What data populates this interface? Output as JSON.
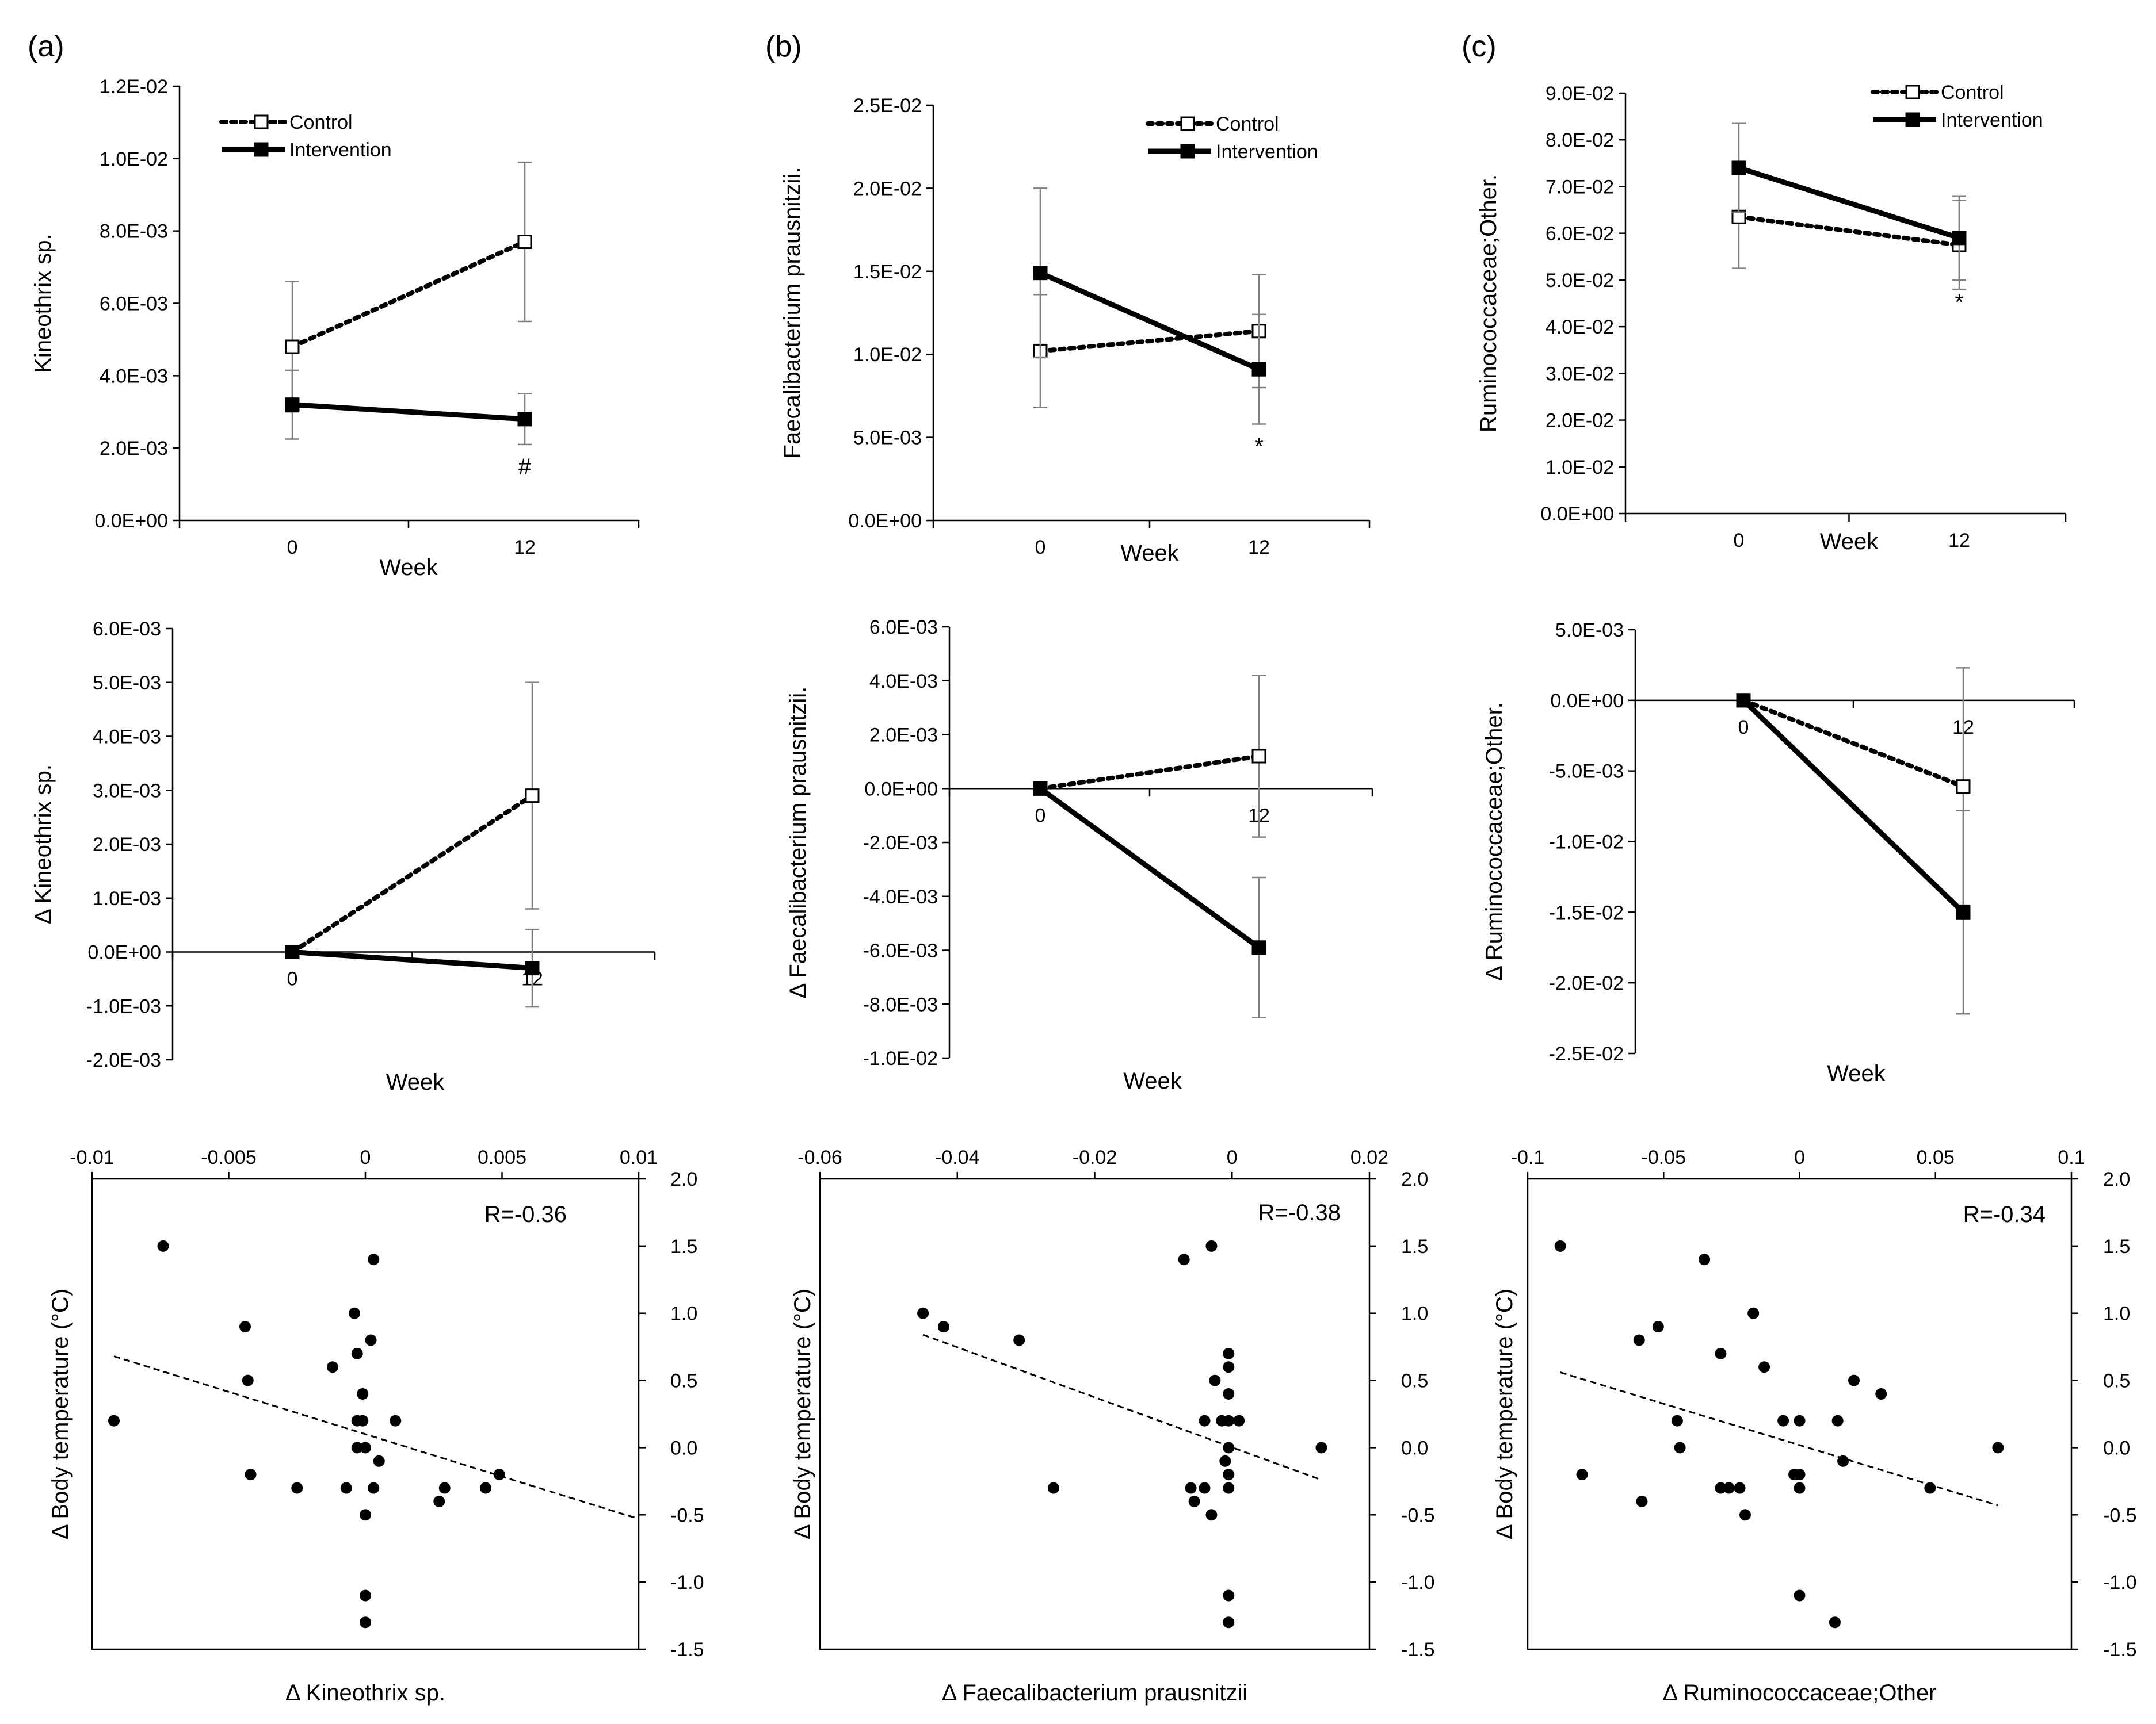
{
  "panel_letters": [
    "(a)",
    "(b)",
    "(c)"
  ],
  "legend": {
    "control": "Control",
    "intervention": "Intervention"
  },
  "colors": {
    "ink": "#000000",
    "background": "#ffffff",
    "errorbar": "#7f7f7f"
  },
  "chart_data": [
    {
      "id": "a-top",
      "type": "line",
      "title": "",
      "xlabel": "Week",
      "ylabel": "Kineothrix sp.",
      "categories": [
        "0",
        "12"
      ],
      "ylim": [
        0,
        0.012
      ],
      "ytick_step": 0.002,
      "ytick_labels": [
        "0.0E+00",
        "2.0E-03",
        "4.0E-03",
        "6.0E-03",
        "8.0E-03",
        "1.0E-02",
        "1.2E-02"
      ],
      "series": [
        {
          "name": "Control",
          "values": [
            0.0048,
            0.0077
          ],
          "err": [
            0.0018,
            0.0022
          ]
        },
        {
          "name": "Intervention",
          "values": [
            0.0032,
            0.0028
          ],
          "err": [
            0.00095,
            0.0007
          ]
        }
      ],
      "annotations": [
        {
          "text": "#",
          "series": 1,
          "point": 1
        }
      ]
    },
    {
      "id": "b-top",
      "type": "line",
      "title": "",
      "xlabel": "Week",
      "ylabel": "Faecalibacterium prausnitzii.",
      "categories": [
        "0",
        "12"
      ],
      "ylim": [
        0,
        0.025
      ],
      "ytick_step": 0.005,
      "ytick_labels": [
        "0.0E+00",
        "5.0E-03",
        "1.0E-02",
        "1.5E-02",
        "2.0E-02",
        "2.5E-02"
      ],
      "series": [
        {
          "name": "Control",
          "values": [
            0.0102,
            0.0114
          ],
          "err": [
            0.0034,
            0.0034
          ]
        },
        {
          "name": "Intervention",
          "values": [
            0.0149,
            0.0091
          ],
          "err": [
            0.0051,
            0.0033
          ]
        }
      ],
      "annotations": [
        {
          "text": "*",
          "series": 1,
          "point": 1
        }
      ]
    },
    {
      "id": "c-top",
      "type": "line",
      "title": "",
      "xlabel": "Week",
      "ylabel": "Ruminococcaceae;Other.",
      "categories": [
        "0",
        "12"
      ],
      "ylim": [
        0,
        0.09
      ],
      "ytick_step": 0.01,
      "ytick_labels": [
        "0.0E+00",
        "1.0E-02",
        "2.0E-02",
        "3.0E-02",
        "4.0E-02",
        "5.0E-02",
        "6.0E-02",
        "7.0E-02",
        "8.0E-02",
        "9.0E-02"
      ],
      "series": [
        {
          "name": "Control",
          "values": [
            0.0635,
            0.0575
          ],
          "err": [
            0.011,
            0.0095
          ]
        },
        {
          "name": "Intervention",
          "values": [
            0.074,
            0.059
          ],
          "err": [
            0.0095,
            0.009
          ]
        }
      ],
      "annotations": [
        {
          "text": "*",
          "series": 1,
          "point": 1
        }
      ]
    },
    {
      "id": "a-mid",
      "type": "line",
      "title": "",
      "xlabel": "Week",
      "ylabel": "Δ Kineothrix sp.",
      "categories": [
        "0",
        "12"
      ],
      "ylim": [
        -0.002,
        0.006
      ],
      "ytick_step": 0.001,
      "ytick_labels": [
        "-2.0E-03",
        "-1.0E-03",
        "0.0E+00",
        "1.0E-03",
        "2.0E-03",
        "3.0E-03",
        "4.0E-03",
        "5.0E-03",
        "6.0E-03"
      ],
      "series": [
        {
          "name": "Control",
          "values": [
            0,
            0.0029
          ],
          "err": [
            0,
            0.0021
          ]
        },
        {
          "name": "Intervention",
          "values": [
            0,
            -0.0003
          ],
          "err": [
            0,
            0.00072
          ]
        }
      ]
    },
    {
      "id": "b-mid",
      "type": "line",
      "title": "",
      "xlabel": "Week",
      "ylabel": "Δ Faecalibacterium prausnitzii.",
      "categories": [
        "0",
        "12"
      ],
      "ylim": [
        -0.01,
        0.006
      ],
      "ytick_step": 0.002,
      "ytick_labels": [
        "-1.0E-02",
        "-8.0E-03",
        "-6.0E-03",
        "-4.0E-03",
        "-2.0E-03",
        "0.0E+00",
        "2.0E-03",
        "4.0E-03",
        "6.0E-03"
      ],
      "series": [
        {
          "name": "Control",
          "values": [
            0,
            0.0012
          ],
          "err": [
            0,
            0.003
          ]
        },
        {
          "name": "Intervention",
          "values": [
            0,
            -0.0059
          ],
          "err": [
            0,
            0.0026
          ]
        }
      ]
    },
    {
      "id": "c-mid",
      "type": "line",
      "title": "",
      "xlabel": "Week",
      "ylabel": "Δ Ruminococcaceae;Other.",
      "categories": [
        "0",
        "12"
      ],
      "ylim": [
        -0.025,
        0.005
      ],
      "ytick_step": 0.005,
      "ytick_labels": [
        "-2.5E-02",
        "-2.0E-02",
        "-1.5E-02",
        "-1.0E-02",
        "-5.0E-03",
        "0.0E+00",
        "5.0E-03"
      ],
      "series": [
        {
          "name": "Control",
          "values": [
            0,
            -0.0061
          ],
          "err": [
            0,
            0.0084
          ]
        },
        {
          "name": "Intervention",
          "values": [
            0,
            -0.015
          ],
          "err": [
            0,
            0.0072
          ]
        }
      ]
    },
    {
      "id": "a-bot",
      "type": "scatter",
      "title": "",
      "xlabel": "Δ Kineothrix sp.",
      "ylabel": "Δ Body temperature (°C)",
      "xlim": [
        -0.01,
        0.01
      ],
      "xtick_step": 0.005,
      "xtick_labels": [
        "-0.01",
        "-0.005",
        "0",
        "0.005",
        "0.01"
      ],
      "ylim": [
        -1.5,
        2.0
      ],
      "ytick_step": 0.5,
      "ytick_labels": [
        "-1.5",
        "-1.0",
        "-0.5",
        "0.0",
        "0.5",
        "1.0",
        "1.5",
        "2.0"
      ],
      "r_label": "R=-0.36",
      "trend": {
        "x": [
          -0.0092,
          0.01
        ],
        "y": [
          0.68,
          -0.53
        ]
      },
      "points": [
        [
          -0.0092,
          0.2
        ],
        [
          -0.0074,
          1.5
        ],
        [
          -0.0044,
          0.9
        ],
        [
          -0.0043,
          0.5
        ],
        [
          -0.0042,
          -0.2
        ],
        [
          -0.0025,
          -0.3
        ],
        [
          -0.0012,
          0.6
        ],
        [
          -0.0007,
          -0.3
        ],
        [
          -0.0004,
          1.0
        ],
        [
          -0.0003,
          0.7
        ],
        [
          -0.0003,
          0.0
        ],
        [
          -0.0003,
          0.2
        ],
        [
          -0.0001,
          0.4
        ],
        [
          -0.0001,
          0.2
        ],
        [
          0.0,
          0.0
        ],
        [
          0.0,
          -0.5
        ],
        [
          0.0,
          -1.1
        ],
        [
          0.0,
          -1.3
        ],
        [
          0.0002,
          0.8
        ],
        [
          0.0003,
          -0.3
        ],
        [
          0.0003,
          1.4
        ],
        [
          0.0005,
          -0.1
        ],
        [
          0.0011,
          0.2
        ],
        [
          0.0027,
          -0.4
        ],
        [
          0.0029,
          -0.3
        ],
        [
          0.0044,
          -0.3
        ],
        [
          0.0049,
          -0.2
        ]
      ]
    },
    {
      "id": "b-bot",
      "type": "scatter",
      "title": "",
      "xlabel": "Δ Faecalibacterium prausnitzii",
      "ylabel": "Δ Body temperature (°C)",
      "xlim": [
        -0.06,
        0.02
      ],
      "xtick_step": 0.02,
      "xtick_labels": [
        "-0.06",
        "-0.04",
        "-0.02",
        "0",
        "0.02"
      ],
      "ylim": [
        -1.5,
        2.0
      ],
      "ytick_step": 0.5,
      "ytick_labels": [
        "-1.5",
        "-1.0",
        "-0.5",
        "0.0",
        "0.5",
        "1.0",
        "1.5",
        "2.0"
      ],
      "r_label": "R=-0.38",
      "trend": {
        "x": [
          -0.045,
          0.013
        ],
        "y": [
          0.84,
          -0.24
        ]
      },
      "points": [
        [
          -0.045,
          1.0
        ],
        [
          -0.042,
          0.9
        ],
        [
          -0.031,
          0.8
        ],
        [
          -0.026,
          -0.3
        ],
        [
          -0.007,
          1.4
        ],
        [
          -0.006,
          -0.3
        ],
        [
          -0.0055,
          -0.4
        ],
        [
          -0.004,
          -0.3
        ],
        [
          -0.004,
          0.2
        ],
        [
          -0.003,
          1.5
        ],
        [
          -0.003,
          -0.5
        ],
        [
          -0.0025,
          0.5
        ],
        [
          -0.0015,
          0.2
        ],
        [
          -0.001,
          -0.1
        ],
        [
          -0.0005,
          0.7
        ],
        [
          -0.0005,
          0.6
        ],
        [
          -0.0005,
          0.4
        ],
        [
          -0.0005,
          0.2
        ],
        [
          -0.0005,
          0.0
        ],
        [
          -0.0005,
          -0.2
        ],
        [
          -0.0005,
          -0.3
        ],
        [
          -0.0005,
          -1.1
        ],
        [
          -0.0005,
          -1.3
        ],
        [
          0.001,
          0.2
        ],
        [
          0.013,
          0.0
        ]
      ]
    },
    {
      "id": "c-bot",
      "type": "scatter",
      "title": "",
      "xlabel": "Δ Ruminococcaceae;Other",
      "ylabel": "Δ Body temperature (°C)",
      "xlim": [
        -0.1,
        0.1
      ],
      "xtick_step": 0.05,
      "xtick_labels": [
        "-0.1",
        "-0.05",
        "0",
        "0.05",
        "0.1"
      ],
      "ylim": [
        -1.5,
        2.0
      ],
      "ytick_step": 0.5,
      "ytick_labels": [
        "-1.5",
        "-1.0",
        "-0.5",
        "0.0",
        "0.5",
        "1.0",
        "1.5",
        "2.0"
      ],
      "r_label": "R=-0.34",
      "trend": {
        "x": [
          -0.088,
          0.073
        ],
        "y": [
          0.56,
          -0.43
        ]
      },
      "points": [
        [
          -0.088,
          1.5
        ],
        [
          -0.08,
          -0.2
        ],
        [
          -0.059,
          0.8
        ],
        [
          -0.058,
          -0.4
        ],
        [
          -0.052,
          0.9
        ],
        [
          -0.045,
          0.2
        ],
        [
          -0.044,
          0.0
        ],
        [
          -0.035,
          1.4
        ],
        [
          -0.029,
          0.7
        ],
        [
          -0.029,
          -0.3
        ],
        [
          -0.026,
          -0.3
        ],
        [
          -0.022,
          -0.3
        ],
        [
          -0.02,
          -0.5
        ],
        [
          -0.017,
          1.0
        ],
        [
          -0.013,
          0.6
        ],
        [
          -0.006,
          0.2
        ],
        [
          -0.002,
          -0.2
        ],
        [
          0.0,
          -0.3
        ],
        [
          0.0,
          -0.2
        ],
        [
          0.0,
          0.2
        ],
        [
          0.0,
          -1.1
        ],
        [
          0.013,
          -1.3
        ],
        [
          0.014,
          0.2
        ],
        [
          0.016,
          -0.1
        ],
        [
          0.02,
          0.5
        ],
        [
          0.03,
          0.4
        ],
        [
          0.048,
          -0.3
        ],
        [
          0.073,
          0.0
        ]
      ]
    }
  ]
}
